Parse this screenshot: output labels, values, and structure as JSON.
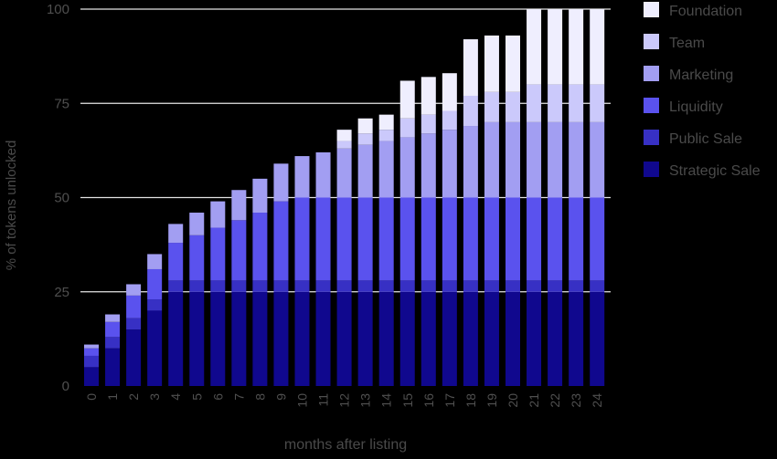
{
  "chart_data": {
    "type": "bar",
    "stacked": true,
    "title": "",
    "xlabel": "months after listing",
    "ylabel": "% of tokens unlocked",
    "ylim": [
      0,
      100
    ],
    "yticks": [
      0,
      25,
      50,
      75,
      100
    ],
    "grid": "horizontal at 25, 50, 75, 100",
    "legend_position": "top-right",
    "categories": [
      "0",
      "1",
      "2",
      "3",
      "4",
      "5",
      "6",
      "7",
      "8",
      "9",
      "10",
      "11",
      "12",
      "13",
      "14",
      "15",
      "16",
      "17",
      "18",
      "19",
      "20",
      "21",
      "22",
      "23",
      "24"
    ],
    "series": [
      {
        "name": "Strategic Sale",
        "color": "#10088e",
        "values": [
          5,
          10,
          15,
          20,
          25,
          25,
          25,
          25,
          25,
          25,
          25,
          25,
          25,
          25,
          25,
          25,
          25,
          25,
          25,
          25,
          25,
          25,
          25,
          25,
          25
        ]
      },
      {
        "name": "Public Sale",
        "color": "#3730c4",
        "values": [
          3,
          3,
          3,
          3,
          3,
          3,
          3,
          3,
          3,
          3,
          3,
          3,
          3,
          3,
          3,
          3,
          3,
          3,
          3,
          3,
          3,
          3,
          3,
          3,
          3
        ]
      },
      {
        "name": "Liquidity",
        "color": "#5a52ee",
        "values": [
          2,
          4,
          6,
          8,
          10,
          12,
          14,
          16,
          18,
          21,
          22,
          22,
          22,
          22,
          22,
          22,
          22,
          22,
          22,
          22,
          22,
          22,
          22,
          22,
          22
        ]
      },
      {
        "name": "Marketing",
        "color": "#a29ef2",
        "values": [
          1,
          2,
          3,
          4,
          5,
          6,
          7,
          8,
          9,
          10,
          11,
          12,
          13,
          14,
          15,
          16,
          17,
          18,
          19,
          20,
          20,
          20,
          20,
          20,
          20
        ]
      },
      {
        "name": "Team",
        "color": "#cbc9fb",
        "values": [
          0,
          0,
          0,
          0,
          0,
          0,
          0,
          0,
          0,
          0,
          0,
          0,
          2,
          3,
          3,
          5,
          5,
          5,
          8,
          8,
          8,
          10,
          10,
          10,
          10
        ]
      },
      {
        "name": "Foundation",
        "color": "#efeefe",
        "values": [
          0,
          0,
          0,
          0,
          0,
          0,
          0,
          0,
          0,
          0,
          0,
          0,
          3,
          4,
          4,
          10,
          10,
          10,
          15,
          15,
          15,
          20,
          20,
          20,
          20
        ]
      }
    ]
  }
}
